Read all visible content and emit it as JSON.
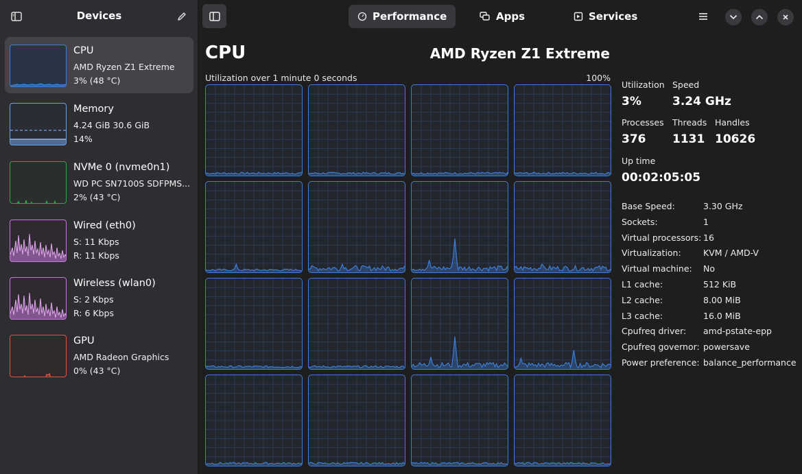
{
  "sidebar": {
    "title": "Devices",
    "devices": [
      {
        "name": "CPU",
        "line1": "AMD Ryzen Z1 Extreme",
        "line2": "3% (48 °C)",
        "color": "#3d7fd8"
      },
      {
        "name": "Memory",
        "line1": "4.24 GiB 30.6 GiB",
        "line2": "14%",
        "color": "#6f9fe0"
      },
      {
        "name": "NVMe 0 (nvme0n1)",
        "line1": "WD PC SN7100S SDFPMS...",
        "line2": "2% (43 °C)",
        "color": "#2fa64e"
      },
      {
        "name": "Wired (eth0)",
        "line1": "S: 11 Kbps",
        "line2": "R: 11 Kbps",
        "color": "#c678dd"
      },
      {
        "name": "Wireless (wlan0)",
        "line1": "S: 2 Kbps",
        "line2": "R: 6 Kbps",
        "color": "#c678dd"
      },
      {
        "name": "GPU",
        "line1": "AMD Radeon Graphics",
        "line2": "0% (43 °C)",
        "color": "#e0533d"
      }
    ]
  },
  "header": {
    "tabs": [
      {
        "label": "Performance",
        "icon": "gauge-icon"
      },
      {
        "label": "Apps",
        "icon": "apps-icon"
      },
      {
        "label": "Services",
        "icon": "services-icon"
      }
    ]
  },
  "main": {
    "title": "CPU",
    "model": "AMD Ryzen Z1 Extreme",
    "graph_caption": "Utilization over 1 minute 0 seconds",
    "graph_max": "100%"
  },
  "stats": {
    "utilization_label": "Utilization",
    "utilization": "3%",
    "speed_label": "Speed",
    "speed": "3.24 GHz",
    "processes_label": "Processes",
    "processes": "376",
    "threads_label": "Threads",
    "threads": "1131",
    "handles_label": "Handles",
    "handles": "10626",
    "uptime_label": "Up time",
    "uptime": "00:02:05:05"
  },
  "details": [
    {
      "key": "Base Speed:",
      "value": "3.30 GHz"
    },
    {
      "key": "Sockets:",
      "value": "1"
    },
    {
      "key": "Virtual processors:",
      "value": "16"
    },
    {
      "key": "Virtualization:",
      "value": "KVM / AMD-V"
    },
    {
      "key": "Virtual machine:",
      "value": "No"
    },
    {
      "key": "L1 cache:",
      "value": "512 KiB"
    },
    {
      "key": "L2 cache:",
      "value": "8.00 MiB"
    },
    {
      "key": "L3 cache:",
      "value": "16.0 MiB"
    },
    {
      "key": "Cpufreq driver:",
      "value": "amd-pstate-epp"
    },
    {
      "key": "Cpufreq governor:",
      "value": "powersave"
    },
    {
      "key": "Power preference:",
      "value": "balance_performance"
    }
  ],
  "colors": {
    "accent": "#3d7fd8",
    "grid": "#2c3f5c"
  }
}
